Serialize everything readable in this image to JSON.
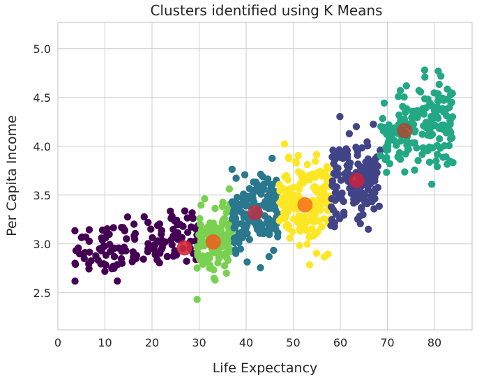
{
  "chart_data": {
    "type": "scatter",
    "title": "Clusters identified using K Means",
    "xlabel": "Life Expectancy",
    "ylabel": "Per Capita Income",
    "xlim": [
      0,
      88
    ],
    "ylim": [
      2.12,
      5.27
    ],
    "xticks": [
      0,
      10,
      20,
      30,
      40,
      50,
      60,
      70,
      80
    ],
    "yticks": [
      2.5,
      3.0,
      3.5,
      4.0,
      4.5,
      5.0
    ],
    "xtick_labels": [
      "0",
      "10",
      "20",
      "30",
      "40",
      "50",
      "60",
      "70",
      "80"
    ],
    "ytick_labels": [
      "2.5",
      "3.0",
      "3.5",
      "4.0",
      "4.5",
      "5.0"
    ],
    "grid": true,
    "clusters": [
      {
        "color": "#440154",
        "x_range": [
          3.5,
          30
        ],
        "y_center": 3.0,
        "y_spread": 0.25,
        "n": 140
      },
      {
        "color": "#7ad151",
        "x_range": [
          29.5,
          37
        ],
        "y_center": 3.05,
        "y_spread": 0.3,
        "n": 120
      },
      {
        "color": "#2a788e",
        "x_range": [
          37,
          47
        ],
        "y_center": 3.3,
        "y_spread": 0.35,
        "n": 150
      },
      {
        "color": "#fde725",
        "x_range": [
          47,
          58
        ],
        "y_center": 3.4,
        "y_spread": 0.4,
        "n": 170
      },
      {
        "color": "#414487",
        "x_range": [
          58,
          68.5
        ],
        "y_center": 3.65,
        "y_spread": 0.4,
        "n": 160
      },
      {
        "color": "#22a884",
        "x_range": [
          68.5,
          84
        ],
        "y_center": 4.2,
        "y_spread": 0.4,
        "n": 180
      }
    ],
    "centroids": [
      {
        "x": 26.9,
        "y": 2.96,
        "color": "#d12a3b"
      },
      {
        "x": 33.0,
        "y": 3.02,
        "color": "#e8631f"
      },
      {
        "x": 41.9,
        "y": 3.32,
        "color": "#b5334a"
      },
      {
        "x": 52.5,
        "y": 3.4,
        "color": "#f5791e"
      },
      {
        "x": 63.5,
        "y": 3.65,
        "color": "#c22443"
      },
      {
        "x": 73.7,
        "y": 4.16,
        "color": "#a24d33"
      }
    ]
  }
}
